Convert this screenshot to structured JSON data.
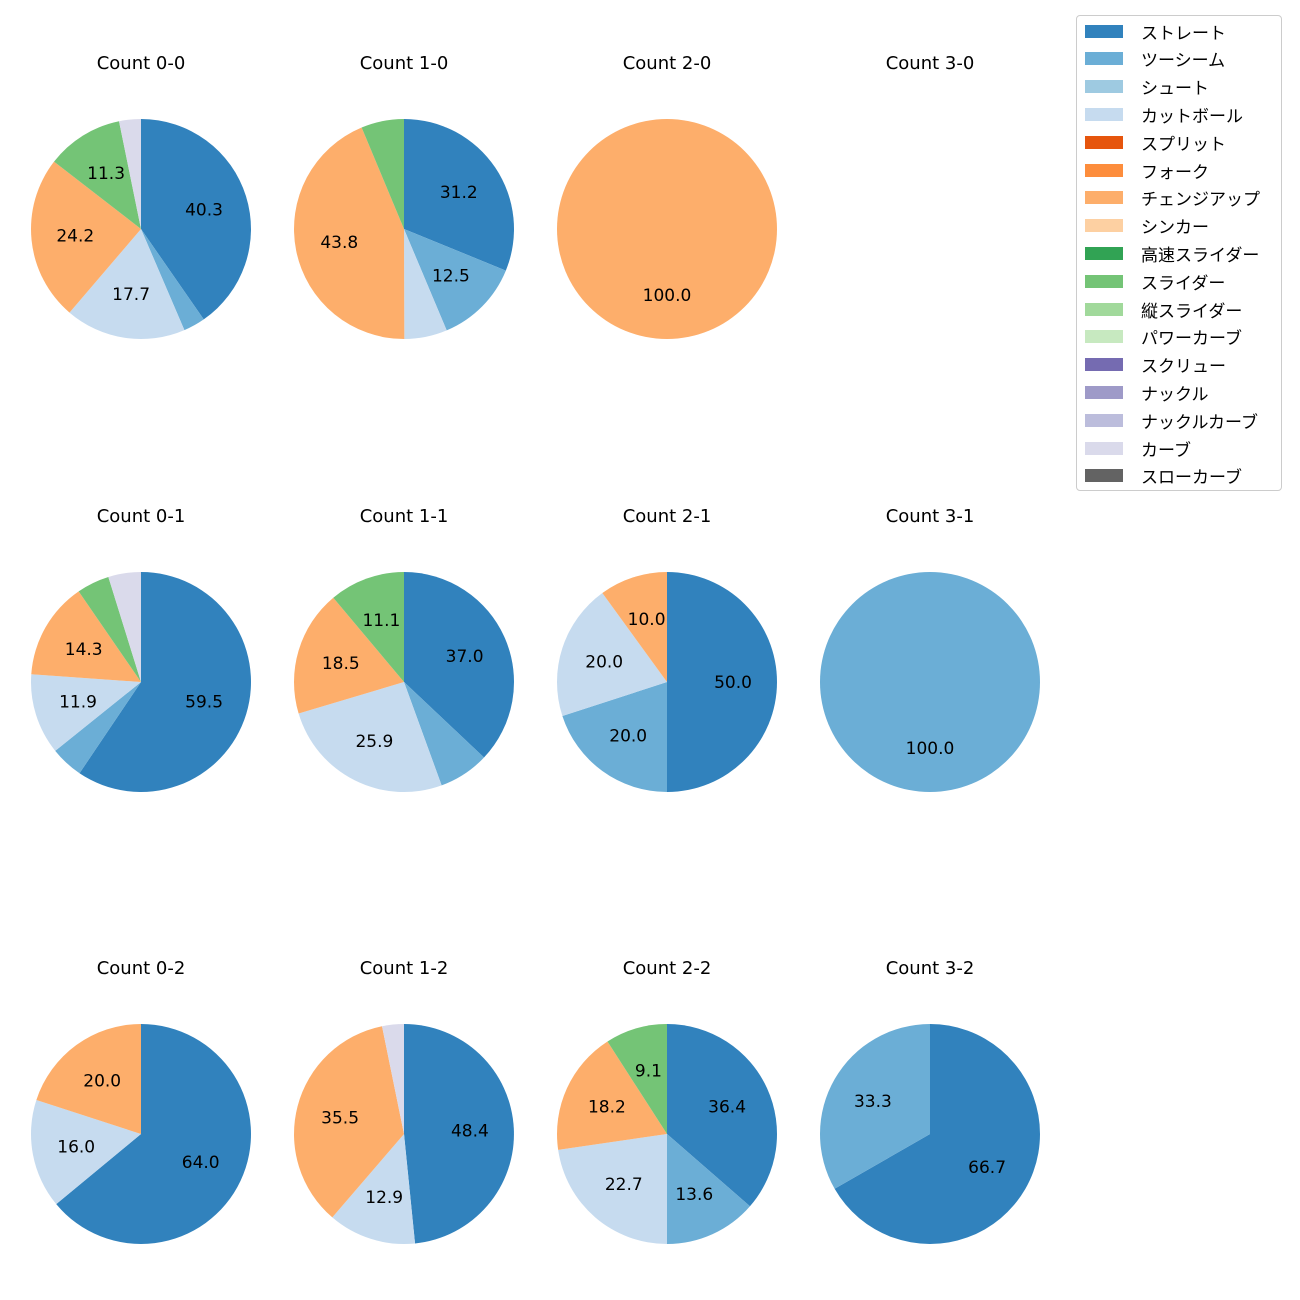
{
  "legend": [
    {
      "name": "ストレート",
      "color": "#3182bd"
    },
    {
      "name": "ツーシーム",
      "color": "#6baed6"
    },
    {
      "name": "シュート",
      "color": "#9ecae1"
    },
    {
      "name": "カットボール",
      "color": "#c6dbef"
    },
    {
      "name": "スプリット",
      "color": "#e6550d"
    },
    {
      "name": "フォーク",
      "color": "#fd8d3c"
    },
    {
      "name": "チェンジアップ",
      "color": "#fdae6b"
    },
    {
      "name": "シンカー",
      "color": "#fdd0a2"
    },
    {
      "name": "高速スライダー",
      "color": "#31a354"
    },
    {
      "name": "スライダー",
      "color": "#74c476"
    },
    {
      "name": "縦スライダー",
      "color": "#a1d99b"
    },
    {
      "name": "パワーカーブ",
      "color": "#c7e9c0"
    },
    {
      "name": "スクリュー",
      "color": "#756bb1"
    },
    {
      "name": "ナックル",
      "color": "#9e9ac8"
    },
    {
      "name": "ナックルカーブ",
      "color": "#bcbddc"
    },
    {
      "name": "カーブ",
      "color": "#dadaeb"
    },
    {
      "name": "スローカーブ",
      "color": "#636363"
    }
  ],
  "chart_data": [
    {
      "type": "pie",
      "title": "Count 0-0",
      "slices": [
        {
          "label": "ストレート",
          "value": 40.3,
          "show": "40.3"
        },
        {
          "label": "ツーシーム",
          "value": 3.2,
          "show": ""
        },
        {
          "label": "カットボール",
          "value": 17.7,
          "show": "17.7"
        },
        {
          "label": "チェンジアップ",
          "value": 24.2,
          "show": "24.2"
        },
        {
          "label": "スライダー",
          "value": 11.3,
          "show": "11.3"
        },
        {
          "label": "カーブ",
          "value": 3.2,
          "show": ""
        }
      ]
    },
    {
      "type": "pie",
      "title": "Count 1-0",
      "slices": [
        {
          "label": "ストレート",
          "value": 31.2,
          "show": "31.2"
        },
        {
          "label": "ツーシーム",
          "value": 12.5,
          "show": "12.5"
        },
        {
          "label": "カットボール",
          "value": 6.3,
          "show": ""
        },
        {
          "label": "チェンジアップ",
          "value": 43.8,
          "show": "43.8"
        },
        {
          "label": "スライダー",
          "value": 6.3,
          "show": ""
        }
      ]
    },
    {
      "type": "pie",
      "title": "Count 2-0",
      "slices": [
        {
          "label": "チェンジアップ",
          "value": 100.0,
          "show": "100.0"
        }
      ]
    },
    {
      "type": "pie",
      "title": "Count 3-0",
      "slices": []
    },
    {
      "type": "pie",
      "title": "Count 0-1",
      "slices": [
        {
          "label": "ストレート",
          "value": 59.5,
          "show": "59.5"
        },
        {
          "label": "ツーシーム",
          "value": 4.8,
          "show": ""
        },
        {
          "label": "カットボール",
          "value": 11.9,
          "show": "11.9"
        },
        {
          "label": "チェンジアップ",
          "value": 14.3,
          "show": "14.3"
        },
        {
          "label": "スライダー",
          "value": 4.8,
          "show": ""
        },
        {
          "label": "カーブ",
          "value": 4.8,
          "show": ""
        }
      ]
    },
    {
      "type": "pie",
      "title": "Count 1-1",
      "slices": [
        {
          "label": "ストレート",
          "value": 37.0,
          "show": "37.0"
        },
        {
          "label": "ツーシーム",
          "value": 7.4,
          "show": ""
        },
        {
          "label": "カットボール",
          "value": 25.9,
          "show": "25.9"
        },
        {
          "label": "チェンジアップ",
          "value": 18.5,
          "show": "18.5"
        },
        {
          "label": "スライダー",
          "value": 11.1,
          "show": "11.1"
        }
      ]
    },
    {
      "type": "pie",
      "title": "Count 2-1",
      "slices": [
        {
          "label": "ストレート",
          "value": 50.0,
          "show": "50.0"
        },
        {
          "label": "ツーシーム",
          "value": 20.0,
          "show": "20.0"
        },
        {
          "label": "カットボール",
          "value": 20.0,
          "show": "20.0"
        },
        {
          "label": "チェンジアップ",
          "value": 10.0,
          "show": "10.0"
        }
      ]
    },
    {
      "type": "pie",
      "title": "Count 3-1",
      "slices": [
        {
          "label": "ツーシーム",
          "value": 100.0,
          "show": "100.0"
        }
      ]
    },
    {
      "type": "pie",
      "title": "Count 0-2",
      "slices": [
        {
          "label": "ストレート",
          "value": 64.0,
          "show": "64.0"
        },
        {
          "label": "カットボール",
          "value": 16.0,
          "show": "16.0"
        },
        {
          "label": "チェンジアップ",
          "value": 20.0,
          "show": "20.0"
        }
      ]
    },
    {
      "type": "pie",
      "title": "Count 1-2",
      "slices": [
        {
          "label": "ストレート",
          "value": 48.4,
          "show": "48.4"
        },
        {
          "label": "カットボール",
          "value": 12.9,
          "show": "12.9"
        },
        {
          "label": "チェンジアップ",
          "value": 35.5,
          "show": "35.5"
        },
        {
          "label": "カーブ",
          "value": 3.2,
          "show": ""
        }
      ]
    },
    {
      "type": "pie",
      "title": "Count 2-2",
      "slices": [
        {
          "label": "ストレート",
          "value": 36.4,
          "show": "36.4"
        },
        {
          "label": "ツーシーム",
          "value": 13.6,
          "show": "13.6"
        },
        {
          "label": "カットボール",
          "value": 22.7,
          "show": "22.7"
        },
        {
          "label": "チェンジアップ",
          "value": 18.2,
          "show": "18.2"
        },
        {
          "label": "スライダー",
          "value": 9.1,
          "show": "9.1"
        }
      ]
    },
    {
      "type": "pie",
      "title": "Count 3-2",
      "slices": [
        {
          "label": "ストレート",
          "value": 66.7,
          "show": "66.7"
        },
        {
          "label": "ツーシーム",
          "value": 33.3,
          "show": "33.3"
        }
      ]
    }
  ]
}
